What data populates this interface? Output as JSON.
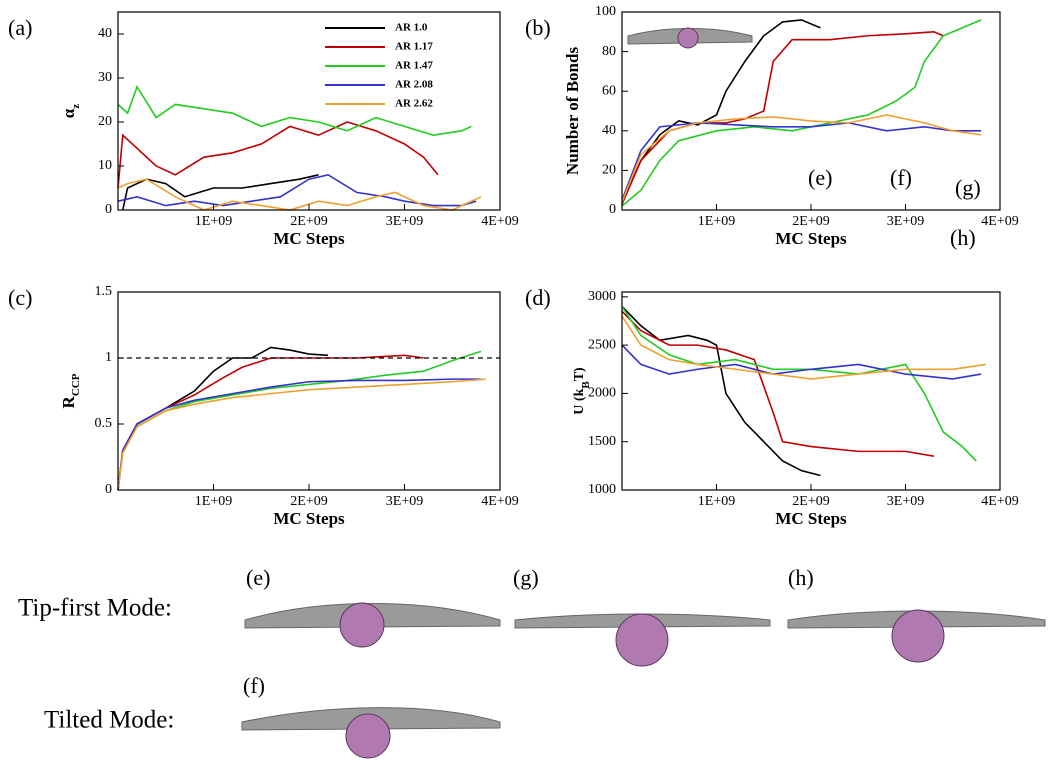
{
  "chart_data": [
    {
      "type": "line",
      "panel_label": "(a)",
      "x_label": "MC Steps",
      "y_label_parts": [
        {
          "text": "α"
        },
        {
          "text": "z",
          "sub": true
        }
      ],
      "xlim": [
        0,
        4000000000.0
      ],
      "xticks": [
        {
          "value": 1000000000.0,
          "label": "1E+09"
        },
        {
          "value": 2000000000.0,
          "label": "2E+09"
        },
        {
          "value": 3000000000.0,
          "label": "3E+09"
        },
        {
          "value": 4000000000.0,
          "label": "4E+09"
        }
      ],
      "ylim": [
        0,
        45
      ],
      "yticks": [
        0,
        10,
        20,
        30,
        40
      ],
      "legend": "upper right",
      "series": [
        {
          "name": "AR 1.0",
          "color": "#000000",
          "x": [
            50000000.0,
            100000000.0,
            300000000.0,
            500000000.0,
            700000000.0,
            1000000000.0,
            1300000000.0,
            1600000000.0,
            1900000000.0,
            2100000000.0
          ],
          "values": [
            0,
            5,
            7,
            6,
            3,
            5,
            5,
            6,
            7,
            8
          ]
        },
        {
          "name": "AR 1.17",
          "color": "#c00000",
          "x": [
            0,
            50000000.0,
            200000000.0,
            400000000.0,
            600000000.0,
            900000000.0,
            1200000000.0,
            1500000000.0,
            1800000000.0,
            2100000000.0,
            2400000000.0,
            2700000000.0,
            3000000000.0,
            3200000000.0,
            3350000000.0
          ],
          "values": [
            5,
            17,
            14,
            10,
            8,
            12,
            13,
            15,
            19,
            17,
            20,
            18,
            15,
            12,
            8
          ]
        },
        {
          "name": "AR 1.47",
          "color": "#22cc22",
          "x": [
            0,
            100000000.0,
            200000000.0,
            400000000.0,
            600000000.0,
            900000000.0,
            1200000000.0,
            1500000000.0,
            1800000000.0,
            2100000000.0,
            2400000000.0,
            2700000000.0,
            3000000000.0,
            3300000000.0,
            3600000000.0,
            3700000000.0
          ],
          "values": [
            24,
            22,
            28,
            21,
            24,
            23,
            22,
            19,
            21,
            20,
            18,
            21,
            19,
            17,
            18,
            19
          ]
        },
        {
          "name": "AR 2.08",
          "color": "#3333cc",
          "x": [
            0,
            200000000.0,
            500000000.0,
            800000000.0,
            1100000000.0,
            1400000000.0,
            1700000000.0,
            2000000000.0,
            2200000000.0,
            2500000000.0,
            2800000000.0,
            3000000000.0,
            3300000000.0,
            3600000000.0,
            3750000000.0
          ],
          "values": [
            2,
            3,
            1,
            2,
            1,
            2,
            3,
            7,
            8,
            4,
            3,
            2,
            1,
            1,
            2
          ]
        },
        {
          "name": "AR 2.62",
          "color": "#f0a030",
          "x": [
            0,
            100000000.0,
            300000000.0,
            600000000.0,
            900000000.0,
            1200000000.0,
            1500000000.0,
            1800000000.0,
            2100000000.0,
            2400000000.0,
            2700000000.0,
            2900000000.0,
            3200000000.0,
            3500000000.0,
            3800000000.0
          ],
          "values": [
            5,
            6,
            7,
            3,
            0,
            2,
            1,
            0,
            2,
            1,
            3,
            4,
            1,
            0,
            3
          ]
        }
      ]
    },
    {
      "type": "line",
      "panel_label": "(b)",
      "x_label": "MC Steps",
      "y_label_parts": [
        {
          "text": "Number of Bonds"
        }
      ],
      "xlim": [
        0,
        4000000000.0
      ],
      "xticks": [
        {
          "value": 1000000000.0,
          "label": "1E+09"
        },
        {
          "value": 2000000000.0,
          "label": "2E+09"
        },
        {
          "value": 3000000000.0,
          "label": "3E+09"
        },
        {
          "value": 4000000000.0,
          "label": "4E+09"
        }
      ],
      "ylim": [
        0,
        100
      ],
      "yticks": [
        0,
        20,
        40,
        60,
        80,
        100
      ],
      "annotations": [
        "(e)",
        "(f)",
        "(g)",
        "(h)"
      ],
      "series": [
        {
          "color": "#000000",
          "x": [
            0,
            200000000.0,
            400000000.0,
            600000000.0,
            800000000.0,
            1000000000.0,
            1100000000.0,
            1300000000.0,
            1500000000.0,
            1700000000.0,
            1900000000.0,
            2100000000.0
          ],
          "values": [
            3,
            25,
            38,
            45,
            43,
            48,
            60,
            75,
            88,
            95,
            96,
            92
          ]
        },
        {
          "color": "#c00000",
          "x": [
            0,
            200000000.0,
            500000000.0,
            800000000.0,
            1100000000.0,
            1300000000.0,
            1500000000.0,
            1600000000.0,
            1800000000.0,
            2200000000.0,
            2600000000.0,
            3000000000.0,
            3300000000.0,
            3400000000.0
          ],
          "values": [
            3,
            25,
            40,
            44,
            44,
            46,
            50,
            75,
            86,
            86,
            88,
            89,
            90,
            88
          ]
        },
        {
          "color": "#22cc22",
          "x": [
            0,
            200000000.0,
            400000000.0,
            600000000.0,
            1000000000.0,
            1400000000.0,
            1800000000.0,
            2200000000.0,
            2600000000.0,
            2900000000.0,
            3100000000.0,
            3200000000.0,
            3400000000.0,
            3600000000.0,
            3800000000.0
          ],
          "values": [
            2,
            10,
            25,
            35,
            40,
            42,
            40,
            44,
            48,
            55,
            62,
            75,
            88,
            92,
            96
          ]
        },
        {
          "color": "#3333cc",
          "x": [
            0,
            200000000.0,
            400000000.0,
            800000000.0,
            1200000000.0,
            1600000000.0,
            2000000000.0,
            2400000000.0,
            2800000000.0,
            3200000000.0,
            3500000000.0,
            3800000000.0
          ],
          "values": [
            5,
            30,
            42,
            44,
            43,
            42,
            42,
            44,
            40,
            42,
            40,
            40
          ]
        },
        {
          "color": "#f0a030",
          "x": [
            0,
            200000000.0,
            500000000.0,
            800000000.0,
            1200000000.0,
            1600000000.0,
            2000000000.0,
            2400000000.0,
            2800000000.0,
            3200000000.0,
            3500000000.0,
            3800000000.0
          ],
          "values": [
            4,
            28,
            40,
            44,
            46,
            47,
            45,
            44,
            48,
            44,
            40,
            38
          ]
        }
      ]
    },
    {
      "type": "line",
      "panel_label": "(c)",
      "x_label": "MC Steps",
      "y_label_parts": [
        {
          "text": "R"
        },
        {
          "text": "CCP",
          "sub": true
        }
      ],
      "xlim": [
        0,
        4000000000.0
      ],
      "xticks": [
        {
          "value": 1000000000.0,
          "label": "1E+09"
        },
        {
          "value": 2000000000.0,
          "label": "2E+09"
        },
        {
          "value": 3000000000.0,
          "label": "3E+09"
        },
        {
          "value": 4000000000.0,
          "label": "4E+09"
        }
      ],
      "ylim": [
        0,
        1.5
      ],
      "yticks": [
        0,
        0.5,
        1,
        1.5
      ],
      "hline": 1,
      "hline_style": "dashed",
      "series": [
        {
          "color": "#000000",
          "x": [
            0,
            50000000.0,
            200000000.0,
            500000000.0,
            800000000.0,
            1000000000.0,
            1200000000.0,
            1400000000.0,
            1600000000.0,
            1800000000.0,
            2000000000.0,
            2200000000.0
          ],
          "values": [
            0,
            0.3,
            0.5,
            0.62,
            0.75,
            0.9,
            1,
            1,
            1.08,
            1.06,
            1.03,
            1.02
          ]
        },
        {
          "color": "#c00000",
          "x": [
            0,
            50000000.0,
            200000000.0,
            500000000.0,
            800000000.0,
            1100000000.0,
            1300000000.0,
            1600000000.0,
            2000000000.0,
            2500000000.0,
            3000000000.0,
            3200000000.0
          ],
          "values": [
            0,
            0.3,
            0.5,
            0.62,
            0.72,
            0.85,
            0.93,
            1,
            1,
            1,
            1.02,
            1
          ]
        },
        {
          "color": "#22cc22",
          "x": [
            0,
            50000000.0,
            200000000.0,
            500000000.0,
            800000000.0,
            1200000000.0,
            1600000000.0,
            2000000000.0,
            2400000000.0,
            2800000000.0,
            3200000000.0,
            3500000000.0,
            3800000000.0
          ],
          "values": [
            0,
            0.3,
            0.48,
            0.6,
            0.67,
            0.72,
            0.77,
            0.8,
            0.83,
            0.87,
            0.9,
            0.98,
            1.05
          ]
        },
        {
          "color": "#3333cc",
          "x": [
            0,
            50000000.0,
            200000000.0,
            500000000.0,
            800000000.0,
            1200000000.0,
            1600000000.0,
            2000000000.0,
            2500000000.0,
            3000000000.0,
            3500000000.0,
            3800000000.0
          ],
          "values": [
            0,
            0.3,
            0.5,
            0.62,
            0.68,
            0.73,
            0.78,
            0.82,
            0.83,
            0.83,
            0.84,
            0.84
          ]
        },
        {
          "color": "#f0a030",
          "x": [
            0,
            50000000.0,
            200000000.0,
            500000000.0,
            800000000.0,
            1200000000.0,
            1600000000.0,
            2000000000.0,
            2500000000.0,
            3000000000.0,
            3500000000.0,
            3850000000.0
          ],
          "values": [
            0,
            0.28,
            0.48,
            0.6,
            0.65,
            0.7,
            0.73,
            0.76,
            0.78,
            0.8,
            0.82,
            0.84
          ]
        }
      ]
    },
    {
      "type": "line",
      "panel_label": "(d)",
      "x_label": "MC Steps",
      "y_label_parts": [
        {
          "text": "U (k"
        },
        {
          "text": "B",
          "sub": true
        },
        {
          "text": "T)"
        }
      ],
      "xlim": [
        0,
        4000000000.0
      ],
      "xticks": [
        {
          "value": 1000000000.0,
          "label": "1E+09"
        },
        {
          "value": 2000000000.0,
          "label": "2E+09"
        },
        {
          "value": 3000000000.0,
          "label": "3E+09"
        },
        {
          "value": 4000000000.0,
          "label": "4E+09"
        }
      ],
      "ylim": [
        1000,
        3050
      ],
      "yticks": [
        1000,
        1500,
        2000,
        2500,
        3000
      ],
      "series": [
        {
          "color": "#000000",
          "x": [
            0,
            200000000.0,
            400000000.0,
            700000000.0,
            900000000.0,
            1000000000.0,
            1100000000.0,
            1300000000.0,
            1500000000.0,
            1700000000.0,
            1900000000.0,
            2100000000.0
          ],
          "values": [
            2900,
            2700,
            2550,
            2600,
            2550,
            2500,
            2000,
            1700,
            1500,
            1300,
            1200,
            1150
          ]
        },
        {
          "color": "#c00000",
          "x": [
            0,
            200000000.0,
            500000000.0,
            800000000.0,
            1100000000.0,
            1400000000.0,
            1600000000.0,
            1700000000.0,
            2000000000.0,
            2500000000.0,
            3000000000.0,
            3300000000.0
          ],
          "values": [
            2850,
            2650,
            2500,
            2500,
            2450,
            2350,
            1800,
            1500,
            1450,
            1400,
            1400,
            1350
          ]
        },
        {
          "color": "#22cc22",
          "x": [
            0,
            200000000.0,
            500000000.0,
            800000000.0,
            1200000000.0,
            1600000000.0,
            2000000000.0,
            2500000000.0,
            3000000000.0,
            3200000000.0,
            3400000000.0,
            3600000000.0,
            3750000000.0
          ],
          "values": [
            2900,
            2600,
            2400,
            2300,
            2350,
            2250,
            2250,
            2200,
            2300,
            2000,
            1600,
            1450,
            1300
          ]
        },
        {
          "color": "#3333cc",
          "x": [
            0,
            200000000.0,
            500000000.0,
            800000000.0,
            1200000000.0,
            1600000000.0,
            2000000000.0,
            2500000000.0,
            3000000000.0,
            3500000000.0,
            3800000000.0
          ],
          "values": [
            2500,
            2300,
            2200,
            2250,
            2300,
            2200,
            2250,
            2300,
            2200,
            2150,
            2200
          ]
        },
        {
          "color": "#f0a030",
          "x": [
            0,
            200000000.0,
            500000000.0,
            800000000.0,
            1200000000.0,
            1600000000.0,
            2000000000.0,
            2500000000.0,
            3000000000.0,
            3500000000.0,
            3850000000.0
          ],
          "values": [
            2800,
            2500,
            2350,
            2300,
            2250,
            2200,
            2150,
            2200,
            2250,
            2250,
            2300
          ]
        }
      ]
    }
  ],
  "snapshots": {
    "tip_first": {
      "label": "Tip-first Mode:",
      "items": [
        "(e)",
        "(g)",
        "(h)"
      ]
    },
    "tilted": {
      "label": "Tilted Mode:",
      "items": [
        "(f)"
      ]
    }
  }
}
